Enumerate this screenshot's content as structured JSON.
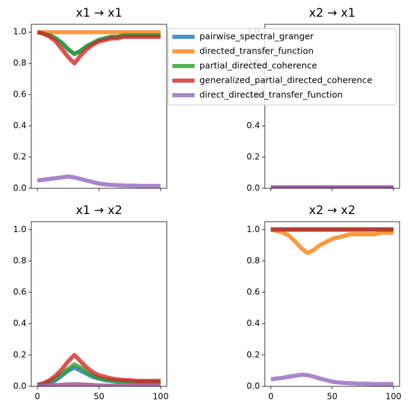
{
  "chart_data": [
    {
      "type": "line",
      "title": "x1 → x1",
      "x": [
        0,
        5,
        10,
        15,
        20,
        25,
        30,
        35,
        40,
        45,
        50,
        55,
        60,
        65,
        70,
        75,
        80,
        85,
        90,
        95,
        100
      ],
      "xlim": [
        -5,
        105
      ],
      "xticks": [
        0,
        50,
        100
      ],
      "ylim": [
        0,
        1.05
      ],
      "yticks": [
        {
          "value": 0,
          "label": "0.0"
        },
        0.2,
        0.4,
        0.6,
        0.8,
        {
          "value": 1,
          "label": "1.0"
        }
      ],
      "series": [
        {
          "name": "pairwise_spectral_granger",
          "color": "#1f77b4",
          "values": [
            1.0,
            0.99,
            0.98,
            0.96,
            0.93,
            0.89,
            0.86,
            0.88,
            0.91,
            0.93,
            0.95,
            0.96,
            0.97,
            0.97,
            0.98,
            0.98,
            0.98,
            0.98,
            0.98,
            0.98,
            0.98
          ]
        },
        {
          "name": "directed_transfer_function",
          "color": "#ff7f0e",
          "values": [
            1,
            1,
            1,
            1,
            1,
            1,
            1,
            1,
            1,
            1,
            1,
            1,
            1,
            1,
            1,
            1,
            1,
            1,
            1,
            1,
            1
          ]
        },
        {
          "name": "partial_directed_coherence",
          "color": "#2ca02c",
          "values": [
            1.0,
            0.99,
            0.98,
            0.96,
            0.93,
            0.89,
            0.86,
            0.88,
            0.91,
            0.93,
            0.95,
            0.96,
            0.97,
            0.97,
            0.98,
            0.98,
            0.98,
            0.98,
            0.98,
            0.98,
            0.98
          ]
        },
        {
          "name": "generalized_partial_directed_coherence",
          "color": "#d62728",
          "values": [
            1.0,
            0.99,
            0.97,
            0.94,
            0.89,
            0.84,
            0.8,
            0.85,
            0.89,
            0.92,
            0.94,
            0.95,
            0.96,
            0.96,
            0.97,
            0.97,
            0.97,
            0.97,
            0.97,
            0.97,
            0.97
          ]
        },
        {
          "name": "direct_directed_transfer_function",
          "color": "#9467bd",
          "values": [
            0.05,
            0.055,
            0.06,
            0.065,
            0.07,
            0.075,
            0.07,
            0.06,
            0.05,
            0.04,
            0.03,
            0.025,
            0.022,
            0.02,
            0.018,
            0.017,
            0.016,
            0.015,
            0.015,
            0.015,
            0.015
          ]
        }
      ]
    },
    {
      "type": "line",
      "title": "x2 → x1",
      "legend": "upper left",
      "x": [
        0,
        5,
        10,
        15,
        20,
        25,
        30,
        35,
        40,
        45,
        50,
        55,
        60,
        65,
        70,
        75,
        80,
        85,
        90,
        95,
        100
      ],
      "xlim": [
        -5,
        105
      ],
      "xticks": [
        0,
        50,
        100
      ],
      "ylim": [
        0,
        1.05
      ],
      "yticks": [
        {
          "value": 0,
          "label": "0.0"
        },
        0.2,
        0.4,
        0.6,
        0.8,
        {
          "value": 1,
          "label": "1.0"
        }
      ],
      "series": [
        {
          "name": "pairwise_spectral_granger",
          "color": "#1f77b4",
          "values": [
            0.005,
            0.005,
            0.005,
            0.005,
            0.005,
            0.005,
            0.005,
            0.005,
            0.005,
            0.005,
            0.005,
            0.005,
            0.005,
            0.005,
            0.005,
            0.005,
            0.005,
            0.005,
            0.005,
            0.005,
            0.005
          ]
        },
        {
          "name": "directed_transfer_function",
          "color": "#ff7f0e",
          "values": [
            0.005,
            0.005,
            0.005,
            0.005,
            0.005,
            0.005,
            0.005,
            0.005,
            0.005,
            0.005,
            0.005,
            0.005,
            0.005,
            0.005,
            0.005,
            0.005,
            0.005,
            0.005,
            0.005,
            0.005,
            0.005
          ]
        },
        {
          "name": "partial_directed_coherence",
          "color": "#2ca02c",
          "values": [
            0.005,
            0.005,
            0.005,
            0.005,
            0.005,
            0.005,
            0.005,
            0.005,
            0.005,
            0.005,
            0.005,
            0.005,
            0.005,
            0.005,
            0.005,
            0.005,
            0.005,
            0.005,
            0.005,
            0.005,
            0.005
          ]
        },
        {
          "name": "generalized_partial_directed_coherence",
          "color": "#d62728",
          "values": [
            0.005,
            0.005,
            0.005,
            0.005,
            0.005,
            0.005,
            0.005,
            0.005,
            0.005,
            0.005,
            0.005,
            0.005,
            0.005,
            0.005,
            0.005,
            0.005,
            0.005,
            0.005,
            0.005,
            0.005,
            0.005
          ]
        },
        {
          "name": "direct_directed_transfer_function",
          "color": "#9467bd",
          "values": [
            0.005,
            0.005,
            0.005,
            0.005,
            0.005,
            0.005,
            0.005,
            0.005,
            0.005,
            0.005,
            0.005,
            0.005,
            0.005,
            0.005,
            0.005,
            0.005,
            0.005,
            0.005,
            0.005,
            0.005,
            0.005
          ]
        }
      ]
    },
    {
      "type": "line",
      "title": "x1 → x2",
      "x": [
        0,
        5,
        10,
        15,
        20,
        25,
        30,
        35,
        40,
        45,
        50,
        55,
        60,
        65,
        70,
        75,
        80,
        85,
        90,
        95,
        100
      ],
      "xlim": [
        -5,
        105
      ],
      "xticks": [
        0,
        50,
        100
      ],
      "ylim": [
        0,
        1.05
      ],
      "yticks": [
        {
          "value": 0,
          "label": "0.0"
        },
        0.2,
        0.4,
        0.6,
        0.8,
        {
          "value": 1,
          "label": "1.0"
        }
      ],
      "series": [
        {
          "name": "pairwise_spectral_granger",
          "color": "#1f77b4",
          "values": [
            0.01,
            0.015,
            0.02,
            0.04,
            0.07,
            0.1,
            0.12,
            0.1,
            0.08,
            0.06,
            0.05,
            0.04,
            0.035,
            0.03,
            0.03,
            0.03,
            0.025,
            0.025,
            0.025,
            0.025,
            0.025
          ]
        },
        {
          "name": "directed_transfer_function",
          "color": "#ff7f0e",
          "values": [
            0.005,
            0.005,
            0.006,
            0.008,
            0.01,
            0.012,
            0.013,
            0.012,
            0.01,
            0.008,
            0.006,
            0.005,
            0.004,
            0.004,
            0.004,
            0.004,
            0.004,
            0.004,
            0.004,
            0.004,
            0.004
          ]
        },
        {
          "name": "partial_directed_coherence",
          "color": "#2ca02c",
          "values": [
            0.01,
            0.015,
            0.03,
            0.05,
            0.08,
            0.11,
            0.14,
            0.12,
            0.09,
            0.07,
            0.05,
            0.045,
            0.04,
            0.035,
            0.035,
            0.03,
            0.03,
            0.03,
            0.03,
            0.03,
            0.03
          ]
        },
        {
          "name": "generalized_partial_directed_coherence",
          "color": "#d62728",
          "values": [
            0.01,
            0.02,
            0.04,
            0.07,
            0.11,
            0.16,
            0.2,
            0.16,
            0.12,
            0.09,
            0.07,
            0.06,
            0.05,
            0.045,
            0.04,
            0.04,
            0.035,
            0.035,
            0.035,
            0.035,
            0.035
          ]
        },
        {
          "name": "direct_directed_transfer_function",
          "color": "#9467bd",
          "values": [
            0.005,
            0.005,
            0.006,
            0.008,
            0.01,
            0.012,
            0.013,
            0.012,
            0.01,
            0.008,
            0.006,
            0.005,
            0.004,
            0.004,
            0.004,
            0.004,
            0.004,
            0.004,
            0.004,
            0.004,
            0.004
          ]
        }
      ]
    },
    {
      "type": "line",
      "title": "x2 → x2",
      "x": [
        0,
        5,
        10,
        15,
        20,
        25,
        30,
        35,
        40,
        45,
        50,
        55,
        60,
        65,
        70,
        75,
        80,
        85,
        90,
        95,
        100
      ],
      "xlim": [
        -5,
        105
      ],
      "xticks": [
        0,
        50,
        100
      ],
      "ylim": [
        0,
        1.05
      ],
      "yticks": [
        {
          "value": 0,
          "label": "0.0"
        },
        0.2,
        0.4,
        0.6,
        0.8,
        {
          "value": 1,
          "label": "1.0"
        }
      ],
      "series": [
        {
          "name": "pairwise_spectral_granger",
          "color": "#1f77b4",
          "values": [
            1,
            1,
            1,
            1,
            1,
            1,
            1,
            1,
            1,
            1,
            1,
            1,
            1,
            1,
            1,
            1,
            1,
            1,
            1,
            1,
            1
          ]
        },
        {
          "name": "directed_transfer_function",
          "color": "#ff7f0e",
          "values": [
            1.0,
            0.99,
            0.98,
            0.96,
            0.92,
            0.88,
            0.85,
            0.87,
            0.9,
            0.92,
            0.94,
            0.95,
            0.96,
            0.97,
            0.97,
            0.97,
            0.97,
            0.97,
            0.98,
            0.98,
            0.98
          ]
        },
        {
          "name": "partial_directed_coherence",
          "color": "#2ca02c",
          "values": [
            1,
            1,
            1,
            1,
            1,
            1,
            1,
            1,
            1,
            1,
            1,
            1,
            1,
            1,
            1,
            1,
            1,
            1,
            1,
            1,
            1
          ]
        },
        {
          "name": "generalized_partial_directed_coherence",
          "color": "#d62728",
          "values": [
            1,
            1,
            1,
            1,
            1,
            1,
            1,
            1,
            1,
            1,
            1,
            1,
            1,
            1,
            1,
            1,
            1,
            1,
            1,
            1,
            1
          ]
        },
        {
          "name": "direct_directed_transfer_function",
          "color": "#9467bd",
          "values": [
            0.045,
            0.05,
            0.055,
            0.062,
            0.068,
            0.074,
            0.072,
            0.062,
            0.05,
            0.04,
            0.03,
            0.025,
            0.022,
            0.02,
            0.018,
            0.017,
            0.016,
            0.015,
            0.015,
            0.015,
            0.015
          ]
        }
      ]
    }
  ]
}
